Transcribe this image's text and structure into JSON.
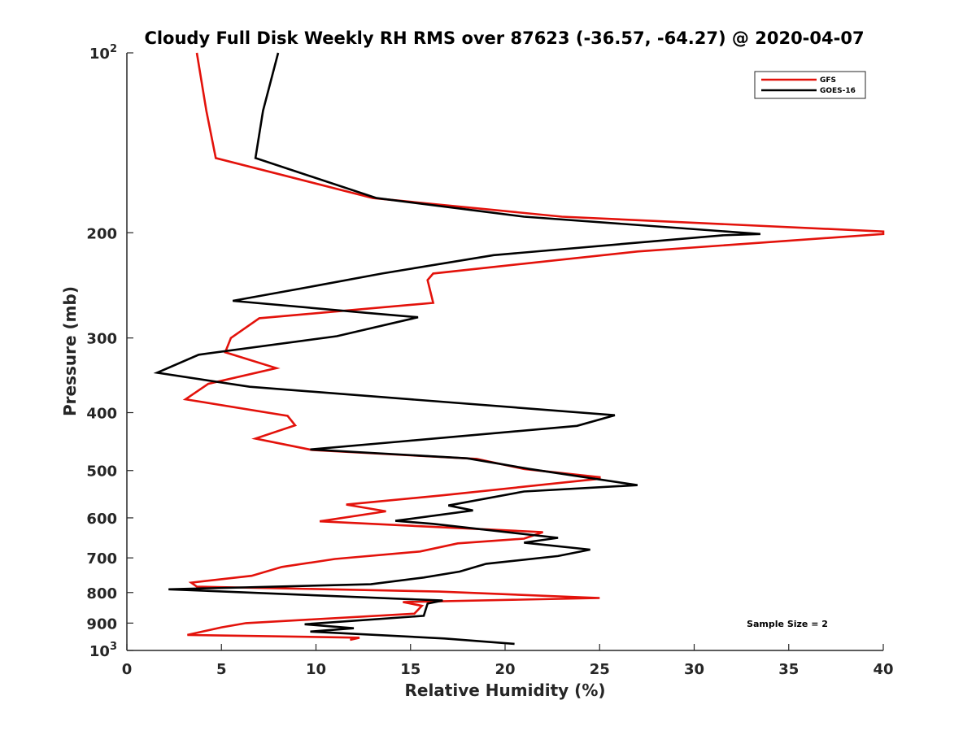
{
  "chart_data": {
    "type": "line",
    "title": "Cloudy Full Disk Weekly RH RMS over 87623 (-36.57, -64.27) @ 2020-04-07",
    "xlabel": "Relative Humidity (%)",
    "ylabel": "Pressure (mb)",
    "xlim": [
      0,
      40
    ],
    "ylim": [
      100,
      1000
    ],
    "y_scale": "log",
    "y_reversed": true,
    "xticks": [
      0,
      5,
      10,
      15,
      20,
      25,
      30,
      35,
      40
    ],
    "xtick_labels": [
      "0",
      "5",
      "10",
      "15",
      "20",
      "25",
      "30",
      "35",
      "40"
    ],
    "yticks": [
      100,
      200,
      300,
      400,
      500,
      600,
      700,
      800,
      900,
      1000
    ],
    "ytick_labels": [
      {
        "base": "10",
        "exp": "2"
      },
      {
        "base": "200",
        "exp": ""
      },
      {
        "base": "300",
        "exp": ""
      },
      {
        "base": "400",
        "exp": ""
      },
      {
        "base": "500",
        "exp": ""
      },
      {
        "base": "600",
        "exp": ""
      },
      {
        "base": "700",
        "exp": ""
      },
      {
        "base": "800",
        "exp": ""
      },
      {
        "base": "900",
        "exp": ""
      },
      {
        "base": "10",
        "exp": "3"
      }
    ],
    "grid": false,
    "legend_position": "top-right",
    "annotation": "Sample Size = 2",
    "series": [
      {
        "name": "GFS",
        "color": "#e3120b",
        "points": [
          [
            3.7,
            100
          ],
          [
            4.2,
            125
          ],
          [
            4.7,
            150
          ],
          [
            13,
            175
          ],
          [
            23,
            188
          ],
          [
            40,
            199
          ],
          [
            40,
            201
          ],
          [
            27,
            215
          ],
          [
            16.2,
            234
          ],
          [
            15.9,
            240
          ],
          [
            16.2,
            262
          ],
          [
            7,
            278
          ],
          [
            5.5,
            300
          ],
          [
            5.2,
            317
          ],
          [
            7.9,
            337
          ],
          [
            4.3,
            358
          ],
          [
            3.1,
            380
          ],
          [
            8.5,
            405
          ],
          [
            8.9,
            420
          ],
          [
            6.8,
            442
          ],
          [
            9.8,
            462
          ],
          [
            18.5,
            478
          ],
          [
            21,
            497
          ],
          [
            25,
            513
          ],
          [
            25,
            516
          ],
          [
            16.7,
            550
          ],
          [
            11.6,
            570
          ],
          [
            13.7,
            585
          ],
          [
            10.2,
            608
          ],
          [
            22,
            634
          ],
          [
            21,
            650
          ],
          [
            17.5,
            662
          ],
          [
            15.5,
            683
          ],
          [
            11,
            703
          ],
          [
            8.2,
            725
          ],
          [
            6.6,
            750
          ],
          [
            3.4,
            770
          ],
          [
            3.7,
            782
          ],
          [
            16.5,
            797
          ],
          [
            25,
            817
          ],
          [
            14.6,
            830
          ],
          [
            15.6,
            842
          ],
          [
            15.2,
            868
          ],
          [
            6.3,
            900
          ],
          [
            5,
            915
          ],
          [
            3.2,
            942
          ],
          [
            12.3,
            952
          ],
          [
            11.8,
            960
          ]
        ]
      },
      {
        "name": "GOES-16",
        "color": "#000000",
        "points": [
          [
            8,
            100
          ],
          [
            7.2,
            125
          ],
          [
            6.8,
            150
          ],
          [
            13.2,
            175
          ],
          [
            21,
            188
          ],
          [
            33.5,
            201
          ],
          [
            31.5,
            202
          ],
          [
            19.4,
            218
          ],
          [
            13.5,
            234
          ],
          [
            9.8,
            246
          ],
          [
            5.6,
            260
          ],
          [
            12.5,
            272
          ],
          [
            15.4,
            277
          ],
          [
            11.1,
            298
          ],
          [
            3.8,
            320
          ],
          [
            1.6,
            343
          ],
          [
            6.5,
            362
          ],
          [
            25.8,
            404
          ],
          [
            23.8,
            421
          ],
          [
            14.5,
            447
          ],
          [
            9.7,
            461
          ],
          [
            18,
            477
          ],
          [
            21.3,
            497
          ],
          [
            27,
            529
          ],
          [
            21,
            542
          ],
          [
            17,
            572
          ],
          [
            18.3,
            583
          ],
          [
            14.2,
            607
          ],
          [
            16.2,
            614
          ],
          [
            22.8,
            648
          ],
          [
            21,
            660
          ],
          [
            24.5,
            678
          ],
          [
            22.8,
            695
          ],
          [
            19,
            716
          ],
          [
            17.6,
            738
          ],
          [
            15.7,
            755
          ],
          [
            12.9,
            775
          ],
          [
            2.2,
            790
          ],
          [
            16.7,
            825
          ],
          [
            15.9,
            835
          ],
          [
            15.7,
            875
          ],
          [
            9.4,
            904
          ],
          [
            12,
            918
          ],
          [
            9.7,
            930
          ],
          [
            16.8,
            955
          ],
          [
            20.5,
            975
          ]
        ]
      }
    ]
  }
}
